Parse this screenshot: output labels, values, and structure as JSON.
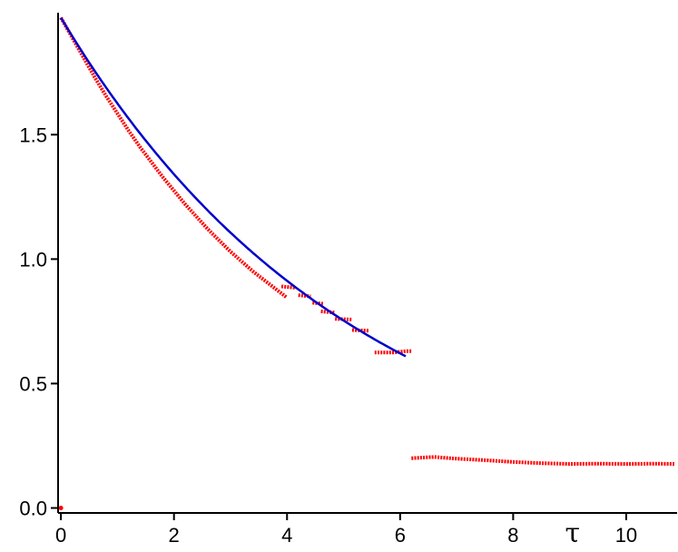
{
  "chart_data": {
    "type": "line",
    "xlabel": "τ",
    "ylabel": "",
    "xlim": [
      -0.05,
      10.9
    ],
    "ylim": [
      -0.02,
      1.99
    ],
    "x_ticks": [
      0,
      2,
      4,
      6,
      8,
      10
    ],
    "x_tick_labels": [
      "0",
      "2",
      "4",
      "6",
      "8",
      "10"
    ],
    "y_ticks": [
      0.0,
      0.5,
      1.0,
      1.5
    ],
    "y_tick_labels": [
      "0.0",
      "0.5",
      "1.0",
      "1.5"
    ],
    "grid": false,
    "colors": {
      "data": "#ff0000",
      "fit": "#0000cc",
      "axis": "#000000"
    },
    "series": [
      {
        "style": "dots",
        "color": "#ff0000",
        "segments": [
          [
            [
              0.0,
              1.97
            ],
            [
              0.2,
              1.89
            ],
            [
              0.4,
              1.81
            ],
            [
              0.6,
              1.73
            ],
            [
              0.8,
              1.655
            ],
            [
              1.0,
              1.585
            ],
            [
              1.2,
              1.515
            ],
            [
              1.4,
              1.45
            ],
            [
              1.6,
              1.39
            ],
            [
              1.8,
              1.33
            ],
            [
              2.0,
              1.275
            ],
            [
              2.2,
              1.22
            ],
            [
              2.4,
              1.17
            ],
            [
              2.6,
              1.12
            ],
            [
              2.8,
              1.075
            ],
            [
              3.0,
              1.03
            ],
            [
              3.2,
              0.99
            ],
            [
              3.4,
              0.95
            ],
            [
              3.6,
              0.915
            ],
            [
              3.8,
              0.88
            ],
            [
              4.0,
              0.845
            ]
          ],
          [
            [
              3.9,
              0.89
            ],
            [
              4.15,
              0.885
            ]
          ],
          [
            [
              4.2,
              0.855
            ],
            [
              4.42,
              0.85
            ]
          ],
          [
            [
              4.45,
              0.825
            ],
            [
              4.65,
              0.82
            ]
          ],
          [
            [
              4.6,
              0.79
            ],
            [
              4.85,
              0.785
            ]
          ],
          [
            [
              4.85,
              0.76
            ],
            [
              5.15,
              0.757
            ]
          ],
          [
            [
              5.15,
              0.715
            ],
            [
              5.45,
              0.712
            ]
          ],
          [
            [
              5.55,
              0.625
            ],
            [
              5.9,
              0.625
            ],
            [
              6.1,
              0.63
            ],
            [
              6.2,
              0.63
            ]
          ],
          [
            [
              6.2,
              0.2
            ],
            [
              6.6,
              0.205
            ],
            [
              7.0,
              0.198
            ],
            [
              7.5,
              0.192
            ],
            [
              8.0,
              0.185
            ],
            [
              8.5,
              0.18
            ],
            [
              9.0,
              0.177
            ],
            [
              9.5,
              0.178
            ],
            [
              10.0,
              0.177
            ],
            [
              10.5,
              0.178
            ],
            [
              10.85,
              0.177
            ]
          ],
          [
            [
              0.0,
              0.0
            ]
          ]
        ]
      },
      {
        "style": "line",
        "color": "#0000cc",
        "function": "exp_decay",
        "a": 1.97,
        "tau": 5.2,
        "x_range": [
          0.0,
          6.1
        ]
      }
    ]
  }
}
